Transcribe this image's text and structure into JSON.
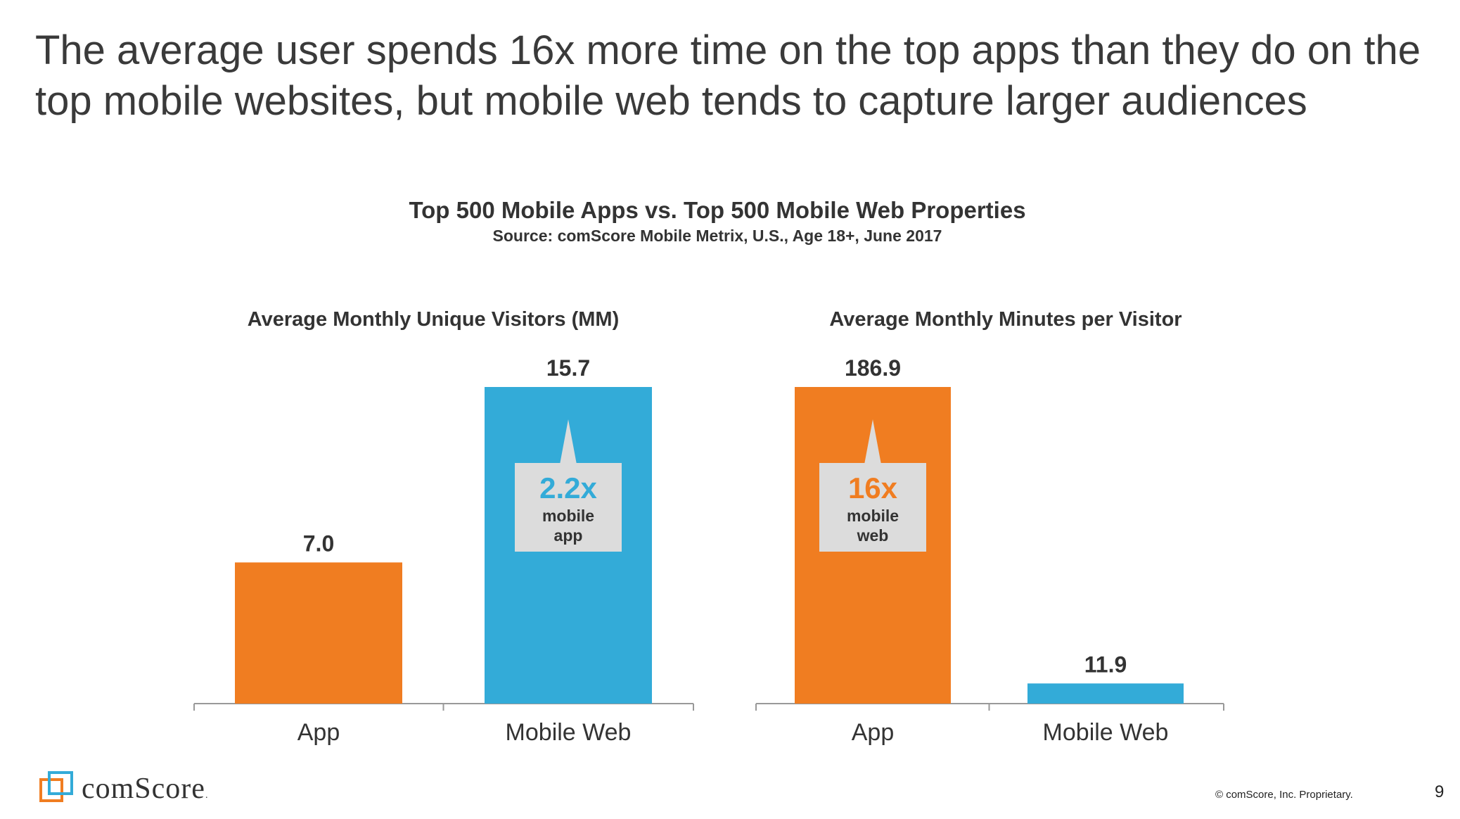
{
  "headline": "The average user spends 16x more time on the top apps than they do on the top mobile websites, but mobile web tends to capture larger audiences",
  "chart_title": "Top 500 Mobile Apps vs. Top 500 Mobile Web Properties",
  "chart_source": "Source: comScore Mobile Metrix, U.S., Age 18+, June 2017",
  "colors": {
    "app": "#F07D21",
    "mobile_web": "#33ABD8",
    "callout_bg": "#DCDCDC",
    "axis": "#999999"
  },
  "chart_data": [
    {
      "type": "bar",
      "title": "Average Monthly Unique Visitors (MM)",
      "categories": [
        "App",
        "Mobile Web"
      ],
      "values": [
        7.0,
        15.7
      ],
      "value_labels": [
        "7.0",
        "15.7"
      ],
      "ylim": [
        0,
        15.7
      ],
      "callout": {
        "category": "Mobile Web",
        "big": "2.2x",
        "line1": "mobile",
        "line2": "app",
        "color": "#33ABD8"
      }
    },
    {
      "type": "bar",
      "title": "Average Monthly Minutes per Visitor",
      "categories": [
        "App",
        "Mobile Web"
      ],
      "values": [
        186.9,
        11.9
      ],
      "value_labels": [
        "186.9",
        "11.9"
      ],
      "ylim": [
        0,
        186.9
      ],
      "callout": {
        "category": "App",
        "big": "16x",
        "line1": "mobile",
        "line2": "web",
        "color": "#F07D21"
      }
    }
  ],
  "footer": {
    "copyright": "© comScore, Inc. Proprietary.",
    "page": "9",
    "logo_text": "comScore"
  }
}
